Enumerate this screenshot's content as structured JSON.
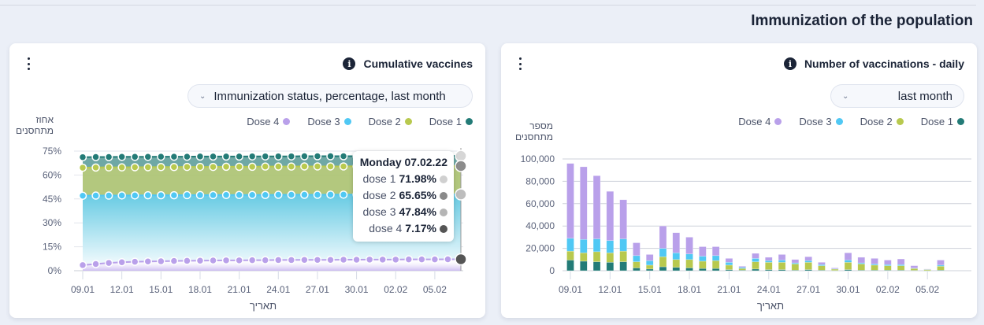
{
  "page": {
    "title": "Immunization of the population"
  },
  "left_card": {
    "title": "Cumulative vaccines",
    "dropdown_label": "Immunization status, percentage, last month",
    "ylabel": "אחוז מתחסנים",
    "xlabel": "תאריך",
    "legend": [
      {
        "label": "Dose 4",
        "color": "#b9a0ea"
      },
      {
        "label": "Dose 3",
        "color": "#50c8f4"
      },
      {
        "label": "Dose 2",
        "color": "#b8c94e"
      },
      {
        "label": "Dose 1",
        "color": "#237b77"
      }
    ],
    "tooltip": {
      "title": "Monday 07.02.22",
      "rows": [
        {
          "label": "dose 1",
          "value": "71.98%",
          "color": "#d0d0d0"
        },
        {
          "label": "dose 2",
          "value": "65.65%",
          "color": "#8a8a8a"
        },
        {
          "label": "dose 3",
          "value": "47.84%",
          "color": "#b5b5b5"
        },
        {
          "label": "dose 4",
          "value": "7.17%",
          "color": "#555555"
        }
      ]
    }
  },
  "right_card": {
    "title": "Number of vaccinations - daily",
    "dropdown_label": "last month",
    "ylabel": "מספר מתחסנים",
    "xlabel": "תאריך",
    "legend": [
      {
        "label": "Dose 4",
        "color": "#b9a0ea"
      },
      {
        "label": "Dose 3",
        "color": "#50c8f4"
      },
      {
        "label": "Dose 2",
        "color": "#b8c94e"
      },
      {
        "label": "Dose 1",
        "color": "#237b77"
      }
    ]
  },
  "chart_data": [
    {
      "type": "area",
      "title": "Cumulative vaccines",
      "xlabel": "תאריך",
      "ylabel": "אחוז מתחסנים",
      "ylim": [
        0,
        75
      ],
      "yticks": [
        "0%",
        "15%",
        "30%",
        "45%",
        "60%",
        "75%"
      ],
      "ytick_values": [
        0,
        15,
        30,
        45,
        60,
        75
      ],
      "xtick_labels": [
        "09.01",
        "12.01",
        "15.01",
        "18.01",
        "21.01",
        "24.01",
        "27.01",
        "30.01",
        "02.02",
        "05.02"
      ],
      "xtick_index": [
        0,
        3,
        6,
        9,
        12,
        15,
        18,
        21,
        24,
        27
      ],
      "n_points": 30,
      "series": [
        {
          "name": "Dose 1",
          "color": "#237b77",
          "values": [
            71.2,
            71.3,
            71.3,
            71.4,
            71.4,
            71.4,
            71.5,
            71.5,
            71.5,
            71.6,
            71.6,
            71.6,
            71.6,
            71.7,
            71.7,
            71.7,
            71.7,
            71.8,
            71.8,
            71.8,
            71.8,
            71.8,
            71.9,
            71.9,
            71.9,
            71.9,
            71.9,
            71.95,
            71.97,
            71.98
          ]
        },
        {
          "name": "Dose 2",
          "color": "#b8c94e",
          "values": [
            64.6,
            64.7,
            64.8,
            64.8,
            64.9,
            64.9,
            65.0,
            65.0,
            65.1,
            65.1,
            65.1,
            65.2,
            65.2,
            65.2,
            65.3,
            65.3,
            65.3,
            65.4,
            65.4,
            65.4,
            65.4,
            65.5,
            65.5,
            65.5,
            65.5,
            65.6,
            65.6,
            65.6,
            65.64,
            65.65
          ]
        },
        {
          "name": "Dose 3",
          "color": "#50c8f4",
          "values": [
            47.0,
            47.1,
            47.1,
            47.2,
            47.2,
            47.3,
            47.3,
            47.3,
            47.4,
            47.4,
            47.4,
            47.5,
            47.5,
            47.5,
            47.5,
            47.6,
            47.6,
            47.6,
            47.6,
            47.7,
            47.7,
            47.7,
            47.7,
            47.7,
            47.8,
            47.8,
            47.8,
            47.8,
            47.83,
            47.84
          ]
        },
        {
          "name": "Dose 4",
          "color": "#b9a0ea",
          "values": [
            3.5,
            4.2,
            4.9,
            5.3,
            5.6,
            5.8,
            5.9,
            6.1,
            6.2,
            6.3,
            6.4,
            6.5,
            6.5,
            6.6,
            6.6,
            6.7,
            6.7,
            6.8,
            6.8,
            6.8,
            6.9,
            6.9,
            7.0,
            7.0,
            7.0,
            7.1,
            7.1,
            7.1,
            7.15,
            7.17
          ]
        }
      ],
      "highlight_index": 29
    },
    {
      "type": "bar",
      "stacked": true,
      "title": "Number of vaccinations - daily",
      "xlabel": "תאריך",
      "ylabel": "מספר מתחסנים",
      "ylim": [
        0,
        100000
      ],
      "yticks": [
        "0",
        "20,000",
        "40,000",
        "60,000",
        "80,000",
        "100,000"
      ],
      "ytick_values": [
        0,
        20000,
        40000,
        60000,
        80000,
        100000
      ],
      "xtick_labels": [
        "09.01",
        "12.01",
        "15.01",
        "18.01",
        "21.01",
        "24.01",
        "27.01",
        "30.01",
        "02.02",
        "05.02"
      ],
      "xtick_index": [
        0,
        3,
        6,
        9,
        12,
        15,
        18,
        21,
        24,
        27
      ],
      "categories": [
        "09.01",
        "10.01",
        "11.01",
        "12.01",
        "13.01",
        "14.01",
        "15.01",
        "16.01",
        "17.01",
        "18.01",
        "19.01",
        "20.01",
        "21.01",
        "22.01",
        "23.01",
        "24.01",
        "25.01",
        "26.01",
        "27.01",
        "28.01",
        "29.01",
        "30.01",
        "31.01",
        "01.02",
        "02.02",
        "03.02",
        "04.02",
        "05.02",
        "06.02"
      ],
      "series": [
        {
          "name": "Dose 1",
          "color": "#237b77",
          "values": [
            9500,
            8500,
            8000,
            7500,
            8000,
            2500,
            1500,
            3500,
            3000,
            2500,
            2000,
            2000,
            1000,
            500,
            1500,
            1000,
            1000,
            500,
            1000,
            500,
            200,
            1000,
            500,
            500,
            500,
            500,
            300,
            100,
            500
          ]
        },
        {
          "name": "Dose 2",
          "color": "#b8c94e",
          "values": [
            8000,
            7500,
            9000,
            8500,
            9500,
            5500,
            3500,
            9000,
            7000,
            7500,
            6500,
            7000,
            4000,
            1500,
            6500,
            6500,
            6500,
            5500,
            6500,
            4000,
            1300,
            6500,
            5500,
            4500,
            4000,
            4000,
            1700,
            1100,
            3500
          ]
        },
        {
          "name": "Dose 3",
          "color": "#50c8f4",
          "values": [
            11500,
            12000,
            11500,
            11000,
            11000,
            5500,
            4000,
            7500,
            6000,
            5000,
            4500,
            4500,
            2500,
            1000,
            3000,
            1500,
            2000,
            1000,
            1500,
            1000,
            200,
            2000,
            1000,
            1000,
            1000,
            1000,
            300,
            100,
            1000
          ]
        },
        {
          "name": "Dose 4",
          "color": "#b9a0ea",
          "values": [
            67000,
            65000,
            56500,
            44000,
            35000,
            11500,
            5500,
            20000,
            18000,
            15000,
            8500,
            8000,
            3500,
            1000,
            4500,
            3000,
            5000,
            3000,
            3500,
            2000,
            800,
            6500,
            5000,
            5000,
            4000,
            5000,
            2200,
            200,
            4500
          ]
        }
      ]
    }
  ]
}
